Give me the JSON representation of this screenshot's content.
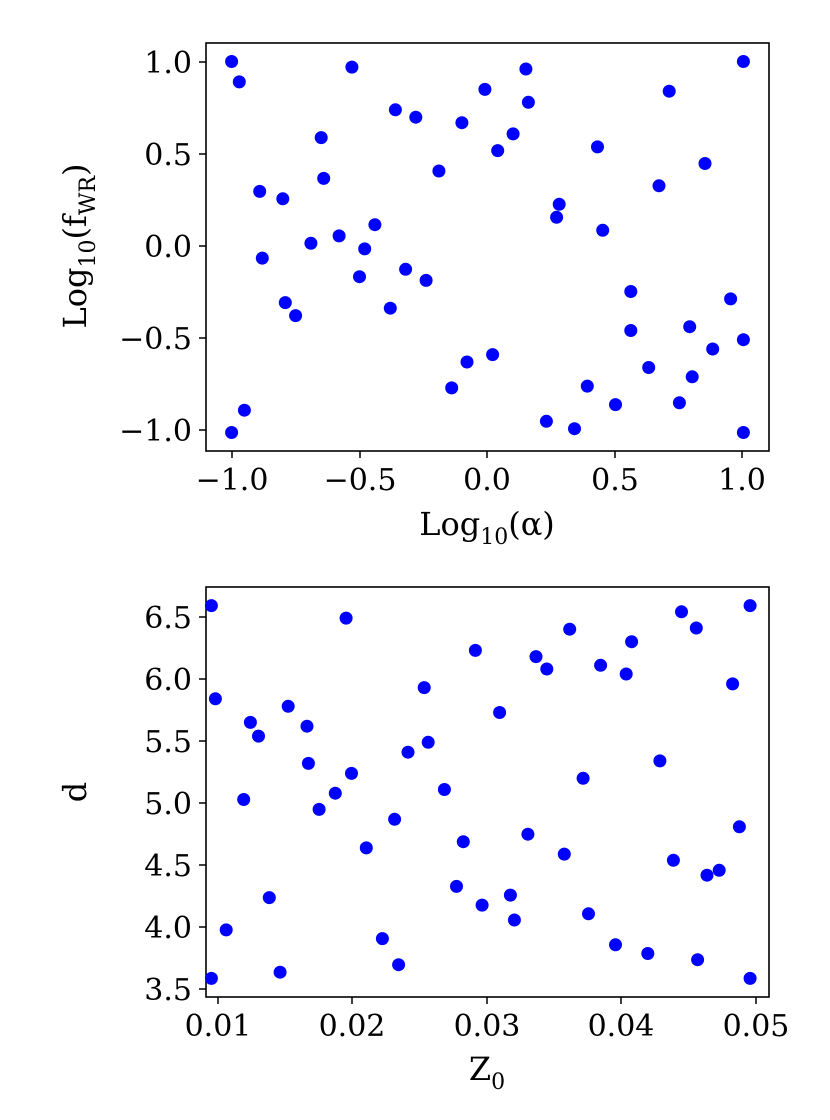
{
  "chart_data": [
    {
      "type": "scatter",
      "xlabel": "Log10(α)",
      "ylabel": "Log10(fWR)",
      "xlim": [
        -1.1,
        1.1
      ],
      "ylim": [
        -1.1,
        1.1
      ],
      "x_ticks": [
        "−1.0",
        "−0.5",
        "0.0",
        "0.5",
        "1.0"
      ],
      "y_ticks": [
        "1.0",
        "0.5",
        "0.0",
        "−0.5",
        "−1.0"
      ],
      "grid": false,
      "marker_color": "#0000ff",
      "points": [
        [
          -1.0,
          1.0
        ],
        [
          -0.97,
          0.89
        ],
        [
          -0.53,
          0.97
        ],
        [
          0.15,
          0.96
        ],
        [
          1.0,
          1.0
        ],
        [
          -0.36,
          0.74
        ],
        [
          -0.28,
          0.7
        ],
        [
          -0.01,
          0.85
        ],
        [
          0.16,
          0.78
        ],
        [
          0.71,
          0.84
        ],
        [
          -0.65,
          0.59
        ],
        [
          -0.1,
          0.67
        ],
        [
          0.1,
          0.61
        ],
        [
          0.04,
          0.52
        ],
        [
          0.43,
          0.54
        ],
        [
          -0.64,
          0.37
        ],
        [
          -0.19,
          0.41
        ],
        [
          0.85,
          0.45
        ],
        [
          0.67,
          0.33
        ],
        [
          -0.89,
          0.3
        ],
        [
          -0.8,
          0.26
        ],
        [
          0.28,
          0.23
        ],
        [
          0.27,
          0.16
        ],
        [
          -0.44,
          0.12
        ],
        [
          0.45,
          0.09
        ],
        [
          -0.58,
          0.06
        ],
        [
          -0.69,
          0.02
        ],
        [
          -0.48,
          -0.01
        ],
        [
          -0.88,
          -0.06
        ],
        [
          -0.32,
          -0.12
        ],
        [
          -0.5,
          -0.16
        ],
        [
          -0.24,
          -0.18
        ],
        [
          0.56,
          -0.24
        ],
        [
          0.95,
          -0.28
        ],
        [
          -0.79,
          -0.3
        ],
        [
          -0.38,
          -0.33
        ],
        [
          -0.75,
          -0.37
        ],
        [
          0.79,
          -0.43
        ],
        [
          0.56,
          -0.45
        ],
        [
          1.0,
          -0.5
        ],
        [
          0.88,
          -0.55
        ],
        [
          0.02,
          -0.58
        ],
        [
          -0.08,
          -0.62
        ],
        [
          0.63,
          -0.65
        ],
        [
          0.8,
          -0.7
        ],
        [
          -0.14,
          -0.76
        ],
        [
          0.39,
          -0.75
        ],
        [
          0.5,
          -0.85
        ],
        [
          0.75,
          -0.84
        ],
        [
          -0.95,
          -0.88
        ],
        [
          0.23,
          -0.94
        ],
        [
          0.34,
          -0.98
        ],
        [
          -1.0,
          -1.0
        ],
        [
          1.0,
          -1.0
        ]
      ]
    },
    {
      "type": "scatter",
      "xlabel": "Z0",
      "ylabel": "d",
      "xlim": [
        0.0096,
        0.0514
      ],
      "ylim": [
        3.45,
        6.75
      ],
      "x_ticks": [
        "0.01",
        "0.02",
        "0.03",
        "0.04",
        "0.05"
      ],
      "y_ticks": [
        "6.5",
        "6.0",
        "5.5",
        "5.0",
        "4.5",
        "4.0",
        "3.5"
      ],
      "grid": false,
      "marker_color": "#0000ff",
      "points": [
        [
          0.01,
          6.6
        ],
        [
          0.0103,
          5.85
        ],
        [
          0.01,
          3.6
        ],
        [
          0.0111,
          3.99
        ],
        [
          0.0124,
          5.04
        ],
        [
          0.0129,
          5.66
        ],
        [
          0.0135,
          5.55
        ],
        [
          0.0143,
          4.25
        ],
        [
          0.0151,
          3.65
        ],
        [
          0.0157,
          5.79
        ],
        [
          0.0171,
          5.63
        ],
        [
          0.0172,
          5.33
        ],
        [
          0.018,
          4.96
        ],
        [
          0.0192,
          5.09
        ],
        [
          0.02,
          6.5
        ],
        [
          0.0204,
          5.25
        ],
        [
          0.0215,
          4.65
        ],
        [
          0.0227,
          3.92
        ],
        [
          0.0236,
          4.88
        ],
        [
          0.0239,
          3.71
        ],
        [
          0.0246,
          5.42
        ],
        [
          0.0258,
          5.94
        ],
        [
          0.0261,
          5.5
        ],
        [
          0.0273,
          5.12
        ],
        [
          0.0282,
          4.34
        ],
        [
          0.0287,
          4.7
        ],
        [
          0.0296,
          6.24
        ],
        [
          0.0301,
          4.19
        ],
        [
          0.0314,
          5.74
        ],
        [
          0.0322,
          4.27
        ],
        [
          0.0325,
          4.07
        ],
        [
          0.0335,
          4.76
        ],
        [
          0.0341,
          6.19
        ],
        [
          0.0349,
          6.09
        ],
        [
          0.0362,
          4.6
        ],
        [
          0.0366,
          6.41
        ],
        [
          0.0376,
          5.21
        ],
        [
          0.038,
          4.12
        ],
        [
          0.0389,
          6.12
        ],
        [
          0.04,
          3.87
        ],
        [
          0.0408,
          6.05
        ],
        [
          0.0412,
          6.31
        ],
        [
          0.0424,
          3.8
        ],
        [
          0.0433,
          5.35
        ],
        [
          0.0443,
          4.55
        ],
        [
          0.0449,
          6.55
        ],
        [
          0.046,
          6.42
        ],
        [
          0.0461,
          3.75
        ],
        [
          0.0468,
          4.43
        ],
        [
          0.0477,
          4.47
        ],
        [
          0.0487,
          5.97
        ],
        [
          0.0492,
          4.82
        ],
        [
          0.05,
          6.6
        ],
        [
          0.05,
          3.6
        ]
      ]
    }
  ]
}
